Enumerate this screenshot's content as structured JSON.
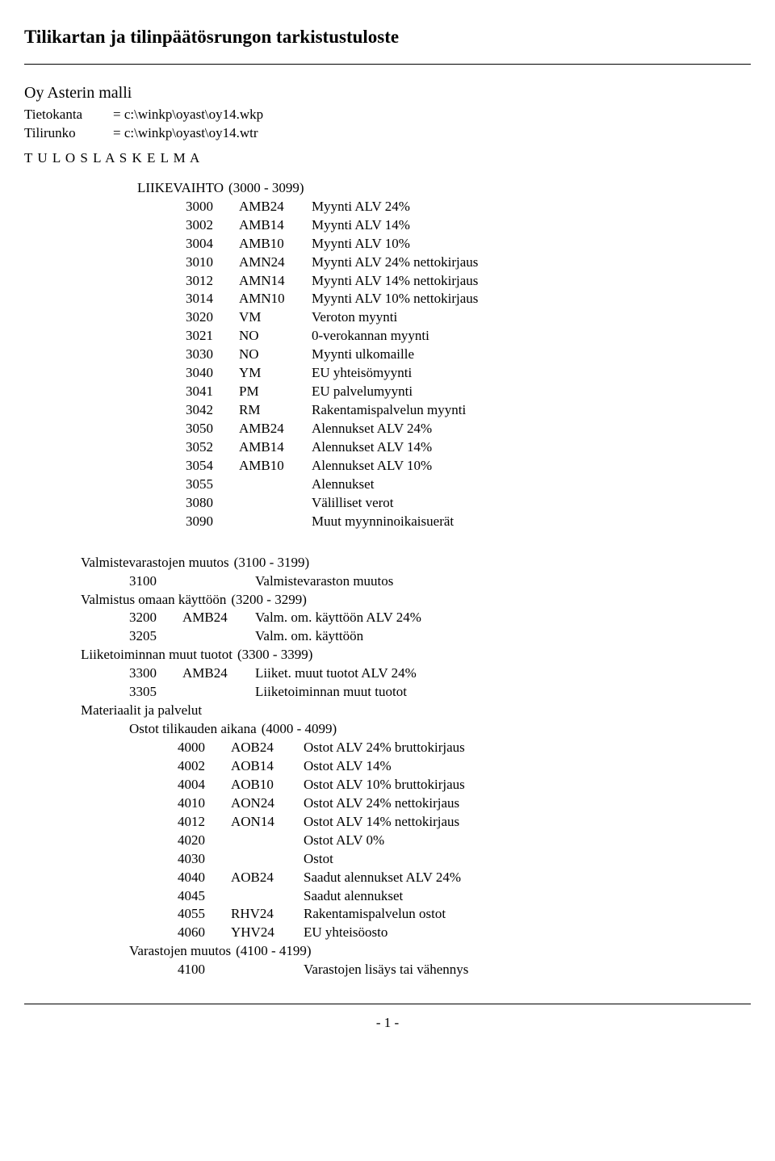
{
  "title": "Tilikartan ja tilinpäätösrungon tarkistustuloste",
  "subtitle": "Oy Asterin malli",
  "meta": {
    "db_label": "Tietokanta",
    "db_value": "= c:\\winkp\\oyast\\oy14.wkp",
    "tmpl_label": "Tilirunko",
    "tmpl_value": "= c:\\winkp\\oyast\\oy14.wtr"
  },
  "section_heading": "T U L O S L A S K E L M A",
  "group1": {
    "label": "LIIKEVAIHTO",
    "range": "(3000 - 3099)"
  },
  "rows1": [
    {
      "n": "3000",
      "c": "AMB24",
      "d": "Myynti ALV 24%"
    },
    {
      "n": "3002",
      "c": "AMB14",
      "d": "Myynti ALV 14%"
    },
    {
      "n": "3004",
      "c": "AMB10",
      "d": "Myynti ALV 10%"
    },
    {
      "n": "3010",
      "c": "AMN24",
      "d": "Myynti ALV 24% nettokirjaus"
    },
    {
      "n": "3012",
      "c": "AMN14",
      "d": "Myynti ALV 14% nettokirjaus"
    },
    {
      "n": "3014",
      "c": "AMN10",
      "d": "Myynti ALV 10% nettokirjaus"
    },
    {
      "n": "3020",
      "c": "VM",
      "d": "Veroton myynti"
    },
    {
      "n": "3021",
      "c": "NO",
      "d": "0-verokannan myynti"
    },
    {
      "n": "3030",
      "c": "NO",
      "d": "Myynti ulkomaille"
    },
    {
      "n": "3040",
      "c": "YM",
      "d": "EU yhteisömyynti"
    },
    {
      "n": "3041",
      "c": "PM",
      "d": "EU palvelumyynti"
    },
    {
      "n": "3042",
      "c": "RM",
      "d": "Rakentamispalvelun myynti"
    },
    {
      "n": "3050",
      "c": "AMB24",
      "d": "Alennukset ALV 24%"
    },
    {
      "n": "3052",
      "c": "AMB14",
      "d": "Alennukset ALV 14%"
    },
    {
      "n": "3054",
      "c": "AMB10",
      "d": "Alennukset ALV 10%"
    },
    {
      "n": "3055",
      "c": "",
      "d": "Alennukset"
    },
    {
      "n": "3080",
      "c": "",
      "d": "Välilliset verot"
    },
    {
      "n": "3090",
      "c": "",
      "d": "Muut myynninoikaisuerät"
    }
  ],
  "group2a": {
    "label": "Valmistevarastojen muutos",
    "range": "(3100 - 3199)"
  },
  "rows2a": [
    {
      "n": "3100",
      "c": "",
      "d": "Valmistevaraston muutos"
    }
  ],
  "group2b": {
    "label": "Valmistus omaan käyttöön",
    "range": "(3200 - 3299)"
  },
  "rows2b": [
    {
      "n": "3200",
      "c": "AMB24",
      "d": "Valm. om. käyttöön ALV 24%"
    },
    {
      "n": "3205",
      "c": "",
      "d": "Valm. om. käyttöön"
    }
  ],
  "group2c": {
    "label": "Liiketoiminnan muut tuotot",
    "range": "(3300 - 3399)"
  },
  "rows2c": [
    {
      "n": "3300",
      "c": "AMB24",
      "d": "Liiket. muut tuotot ALV 24%"
    },
    {
      "n": "3305",
      "c": "",
      "d": "Liiketoiminnan muut tuotot"
    }
  ],
  "group2d": {
    "label": "Materiaalit ja palvelut"
  },
  "group3a": {
    "label": "Ostot tilikauden aikana",
    "range": "(4000 - 4099)"
  },
  "rows3a": [
    {
      "n": "4000",
      "c": "AOB24",
      "d": "Ostot ALV 24% bruttokirjaus"
    },
    {
      "n": "4002",
      "c": "AOB14",
      "d": "Ostot ALV 14%"
    },
    {
      "n": "4004",
      "c": "AOB10",
      "d": "Ostot ALV 10% bruttokirjaus"
    },
    {
      "n": "4010",
      "c": "AON24",
      "d": "Ostot ALV 24% nettokirjaus"
    },
    {
      "n": "4012",
      "c": "AON14",
      "d": "Ostot ALV 14% nettokirjaus"
    },
    {
      "n": "4020",
      "c": "",
      "d": "Ostot ALV 0%"
    },
    {
      "n": "4030",
      "c": "",
      "d": "Ostot"
    },
    {
      "n": "4040",
      "c": "AOB24",
      "d": "Saadut alennukset ALV 24%"
    },
    {
      "n": "4045",
      "c": "",
      "d": "Saadut alennukset"
    },
    {
      "n": "4055",
      "c": "RHV24",
      "d": "Rakentamispalvelun ostot"
    },
    {
      "n": "4060",
      "c": "YHV24",
      "d": "EU yhteisöosto"
    }
  ],
  "group3b": {
    "label": "Varastojen muutos",
    "range": "(4100 - 4199)"
  },
  "rows3b": [
    {
      "n": "4100",
      "c": "",
      "d": "Varastojen lisäys tai vähennys"
    }
  ],
  "page_number": "- 1 -"
}
